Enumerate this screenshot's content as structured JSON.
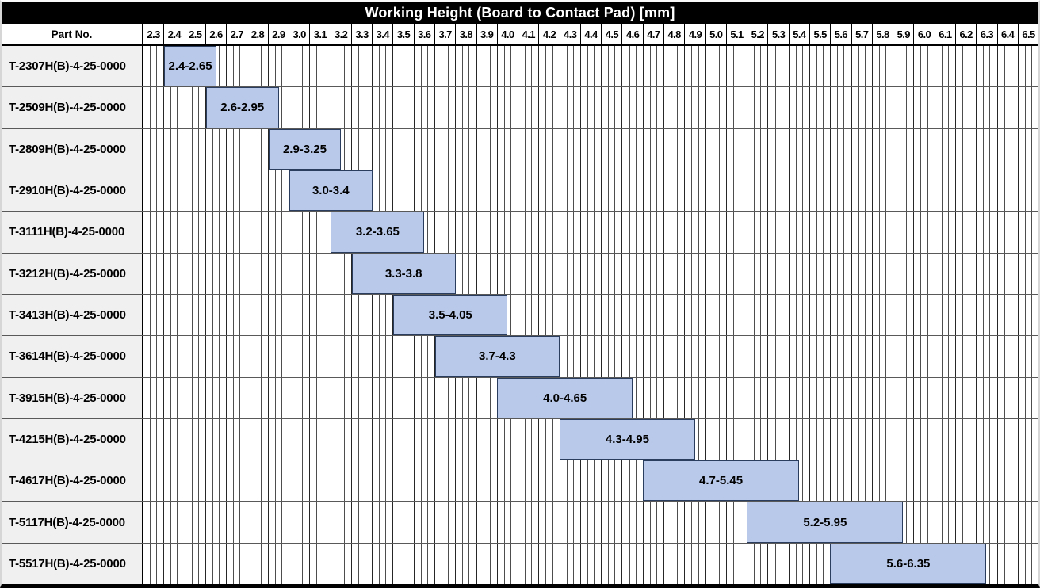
{
  "colors": {
    "title_bg": "#000000",
    "title_fg": "#ffffff",
    "bar_fill": "#b9c9e9",
    "bar_border": "#2a3d5f",
    "grid_subline": "#4d4d4d",
    "grid_colline": "#262626",
    "row_line": "#595959",
    "part_cell_bg": "#f0f0f0",
    "header_border": "#000000"
  },
  "chart_data": {
    "type": "bar",
    "subtype": "horizontal-range-gantt",
    "title": "Working Height (Board to Contact Pad) [mm]",
    "part_no_label": "Part No.",
    "x_min": 2.3,
    "x_max": 6.6,
    "x_tick_step": 0.1,
    "x_tick_labels": [
      "2.3",
      "2.4",
      "2.5",
      "2.6",
      "2.7",
      "2.8",
      "2.9",
      "3.0",
      "3.1",
      "3.2",
      "3.3",
      "3.4",
      "3.5",
      "3.6",
      "3.7",
      "3.8",
      "3.9",
      "4.0",
      "4.1",
      "4.2",
      "4.3",
      "4.4",
      "4.5",
      "4.6",
      "4.7",
      "4.8",
      "4.9",
      "5.0",
      "5.1",
      "5.2",
      "5.3",
      "5.4",
      "5.5",
      "5.6",
      "5.7",
      "5.8",
      "5.9",
      "6.0",
      "6.1",
      "6.2",
      "6.3",
      "6.4",
      "6.5"
    ],
    "grid": "on",
    "legend": "none",
    "rows": [
      {
        "part_no": "T-2307H(B)-4-25-0000",
        "range_label": "2.4-2.65",
        "start": 2.4,
        "end": 2.65
      },
      {
        "part_no": "T-2509H(B)-4-25-0000",
        "range_label": "2.6-2.95",
        "start": 2.6,
        "end": 2.95
      },
      {
        "part_no": "T-2809H(B)-4-25-0000",
        "range_label": "2.9-3.25",
        "start": 2.9,
        "end": 3.25
      },
      {
        "part_no": "T-2910H(B)-4-25-0000",
        "range_label": "3.0-3.4",
        "start": 3.0,
        "end": 3.4
      },
      {
        "part_no": "T-3111H(B)-4-25-0000",
        "range_label": "3.2-3.65",
        "start": 3.2,
        "end": 3.65
      },
      {
        "part_no": "T-3212H(B)-4-25-0000",
        "range_label": "3.3-3.8",
        "start": 3.3,
        "end": 3.8
      },
      {
        "part_no": "T-3413H(B)-4-25-0000",
        "range_label": "3.5-4.05",
        "start": 3.5,
        "end": 4.05
      },
      {
        "part_no": "T-3614H(B)-4-25-0000",
        "range_label": "3.7-4.3",
        "start": 3.7,
        "end": 4.3
      },
      {
        "part_no": "T-3915H(B)-4-25-0000",
        "range_label": "4.0-4.65",
        "start": 4.0,
        "end": 4.65
      },
      {
        "part_no": "T-4215H(B)-4-25-0000",
        "range_label": "4.3-4.95",
        "start": 4.3,
        "end": 4.95
      },
      {
        "part_no": "T-4617H(B)-4-25-0000",
        "range_label": "4.7-5.45",
        "start": 4.7,
        "end": 5.45
      },
      {
        "part_no": "T-5117H(B)-4-25-0000",
        "range_label": "5.2-5.95",
        "start": 5.2,
        "end": 5.95
      },
      {
        "part_no": "T-5517H(B)-4-25-0000",
        "range_label": "5.6-6.35",
        "start": 5.6,
        "end": 6.35
      }
    ]
  }
}
